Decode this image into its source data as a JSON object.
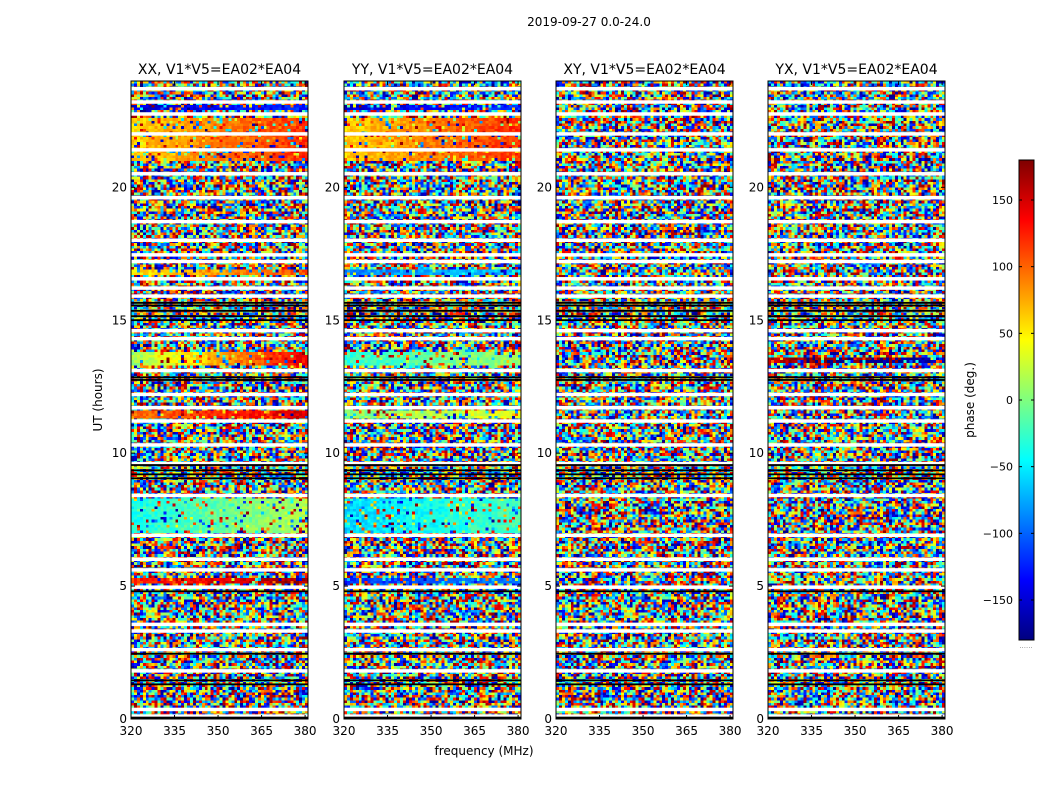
{
  "figure_title": "2019-09-27 0.0-24.0",
  "colors": {
    "jet_stops": [
      "#00007f",
      "#0000ff",
      "#007fff",
      "#00ffff",
      "#7fff7f",
      "#ffff00",
      "#ff7f00",
      "#ff0000",
      "#7f0000"
    ],
    "blank_row": "#ffffff",
    "flag_row": "#000000"
  },
  "chart_data": {
    "type": "heatmap",
    "title": "2019-09-27 0.0-24.0",
    "xlabel": "frequency (MHz)",
    "ylabel": "UT (hours)",
    "xlim": [
      320,
      381
    ],
    "ylim": [
      0,
      24
    ],
    "xticks": [
      320,
      335,
      350,
      365,
      380
    ],
    "yticks": [
      0,
      5,
      10,
      15,
      20
    ],
    "panels": [
      {
        "title": "XX, V1*V5=EA02*EA04",
        "coherent_bands": [
          [
            11.3,
            11.6,
            95,
            150
          ],
          [
            13.3,
            13.8,
            10,
            140
          ],
          [
            21.0,
            22.6,
            60,
            120
          ],
          [
            7.0,
            8.3,
            -40,
            20
          ],
          [
            5.1,
            5.3,
            120,
            170
          ],
          [
            16.7,
            16.9,
            50,
            110
          ],
          [
            22.0,
            22.2,
            150,
            -170
          ],
          [
            22.9,
            23.1,
            -150,
            -120
          ]
        ]
      },
      {
        "title": "YY, V1*V5=EA02*EA04",
        "coherent_bands": [
          [
            11.3,
            11.6,
            0,
            40
          ],
          [
            13.3,
            13.8,
            -30,
            10
          ],
          [
            21.0,
            22.6,
            60,
            120
          ],
          [
            7.0,
            8.3,
            -60,
            -20
          ],
          [
            5.1,
            5.3,
            -120,
            -90
          ],
          [
            16.7,
            16.9,
            -90,
            -60
          ],
          [
            22.0,
            22.2,
            150,
            -170
          ],
          [
            22.9,
            23.1,
            -150,
            -120
          ]
        ]
      },
      {
        "title": "XY, V1*V5=EA02*EA04",
        "coherent_bands": []
      },
      {
        "title": "YX, V1*V5=EA02*EA04",
        "coherent_bands": [
          [
            13.4,
            13.6,
            160,
            -160
          ]
        ]
      }
    ],
    "blank_rows_ut": [
      0.1,
      0.35,
      1.8,
      2.6,
      3.3,
      3.55,
      4.95,
      5.6,
      6.0,
      6.9,
      8.4,
      9.6,
      10.3,
      11.2,
      11.7,
      12.2,
      13.1,
      14.3,
      14.6,
      15.9,
      16.2,
      16.55,
      17.2,
      17.45,
      18.0,
      18.7,
      19.6,
      20.5,
      21.4,
      22.0,
      22.75,
      23.2,
      23.7
    ],
    "flagged_rows_ut": [
      0.05,
      1.3,
      1.45,
      2.45,
      4.8,
      9.05,
      9.2,
      9.35,
      9.55,
      12.75,
      12.85,
      15.0,
      15.15,
      15.35,
      15.55,
      15.65
    ],
    "colorbar": {
      "label": "phase (deg.)",
      "range": [
        -180,
        180
      ],
      "ticks": [
        -150,
        -100,
        -50,
        0,
        50,
        100,
        150
      ],
      "tick_labels": [
        "−150",
        "−100",
        "−50",
        "0",
        "50",
        "100",
        "150"
      ],
      "footnote": "......"
    }
  }
}
